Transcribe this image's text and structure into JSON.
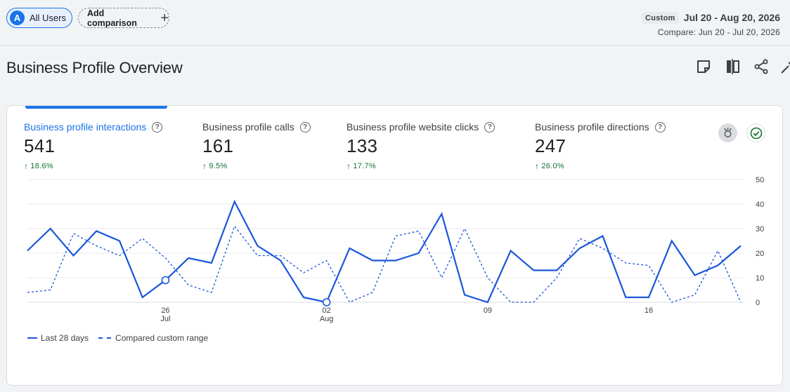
{
  "toolbar": {
    "segment": {
      "avatar_letter": "A",
      "label": "All Users"
    },
    "add_comparison": "Add comparison",
    "date_badge": "Custom",
    "date_range": "Jul 20 - Aug 20, 2026",
    "compare_range": "Compare: Jun 20 - Jul 20, 2026"
  },
  "page": {
    "title": "Business Profile Overview",
    "icons": [
      "note-icon",
      "compare-columns-icon",
      "share-icon",
      "insights-wand-icon"
    ]
  },
  "metrics": [
    {
      "label": "Business profile interactions",
      "value": "541",
      "delta": "18.6%",
      "active": true
    },
    {
      "label": "Business profile calls",
      "value": "161",
      "delta": "9.5%",
      "active": false
    },
    {
      "label": "Business profile website clicks",
      "value": "133",
      "delta": "17.7%",
      "active": false
    },
    {
      "label": "Business profile directions",
      "value": "247",
      "delta": "26.0%",
      "active": false
    }
  ],
  "legend": {
    "current": "Last 28 days",
    "compare": "Compared custom range"
  },
  "colors": {
    "accent": "#1a73e8",
    "line": "#1a56db",
    "positive": "#137333"
  },
  "chart_data": {
    "type": "line",
    "x": [
      "Jul 20",
      "Jul 21",
      "Jul 22",
      "Jul 23",
      "Jul 24",
      "Jul 25",
      "Jul 26",
      "Jul 27",
      "Jul 28",
      "Jul 29",
      "Jul 30",
      "Jul 31",
      "Aug 01",
      "Aug 02",
      "Aug 03",
      "Aug 04",
      "Aug 05",
      "Aug 06",
      "Aug 07",
      "Aug 08",
      "Aug 09",
      "Aug 10",
      "Aug 11",
      "Aug 12",
      "Aug 13",
      "Aug 14",
      "Aug 15",
      "Aug 16",
      "Aug 17",
      "Aug 18",
      "Aug 19",
      "Aug 20"
    ],
    "x_ticks": [
      {
        "index": 6,
        "day": "26",
        "month": "Jul"
      },
      {
        "index": 13,
        "day": "02",
        "month": "Aug"
      },
      {
        "index": 20,
        "day": "09",
        "month": ""
      },
      {
        "index": 27,
        "day": "16",
        "month": ""
      }
    ],
    "y_ticks": [
      0,
      10,
      20,
      30,
      40,
      50
    ],
    "ylim": [
      0,
      50
    ],
    "series": [
      {
        "name": "Last 28 days",
        "style": "solid",
        "values": [
          21,
          30,
          19,
          29,
          25,
          2,
          9,
          18,
          16,
          41,
          23,
          17,
          2,
          0,
          22,
          17,
          17,
          20,
          36,
          3,
          0,
          21,
          13,
          13,
          22,
          27,
          2,
          2,
          25,
          11,
          15,
          23
        ],
        "markers": [
          6,
          13
        ]
      },
      {
        "name": "Compared custom range",
        "style": "dashed",
        "values": [
          4,
          5,
          28,
          23,
          19,
          26,
          18,
          7,
          4,
          31,
          19,
          19,
          12,
          17,
          0,
          4,
          27,
          29,
          10,
          30,
          10,
          0,
          0,
          10,
          26,
          22,
          16,
          15,
          0,
          3,
          21,
          0
        ]
      }
    ]
  }
}
